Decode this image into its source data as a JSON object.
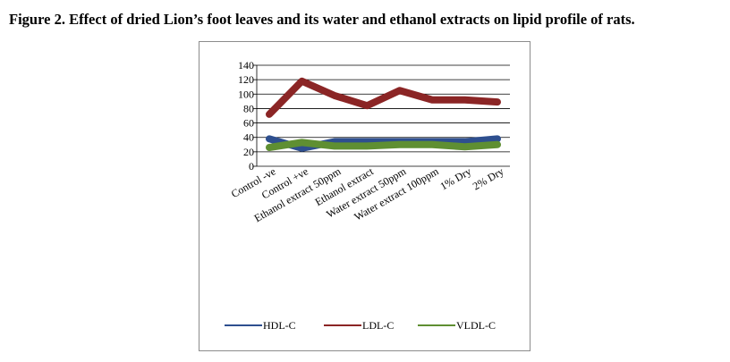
{
  "caption": "Figure 2. Effect of dried Lion’s foot leaves and its water and ethanol extracts on lipid profile of rats.",
  "chart_data": {
    "type": "line",
    "categories": [
      "Control -ve",
      "Control +ve",
      "Ethanol extract 50ppm",
      "Ethanol extract",
      "Water extract 50ppm",
      "Water extract 100ppm",
      "1% Dry",
      "2% Dry"
    ],
    "series": [
      {
        "name": "HDL-C",
        "color": "#2e4f8f",
        "values": [
          38,
          25,
          34,
          34,
          34,
          34,
          34,
          38
        ]
      },
      {
        "name": "LDL-C",
        "color": "#8b2525",
        "values": [
          72,
          118,
          98,
          84,
          105,
          92,
          92,
          89
        ]
      },
      {
        "name": "VLDL-C",
        "color": "#5f8f32",
        "values": [
          26,
          33,
          28,
          28,
          30,
          30,
          27,
          30
        ]
      }
    ],
    "y_ticks": [
      0,
      20,
      40,
      60,
      80,
      100,
      120,
      140
    ],
    "ylim": [
      0,
      140
    ],
    "grid": true,
    "legend_position": "bottom"
  }
}
